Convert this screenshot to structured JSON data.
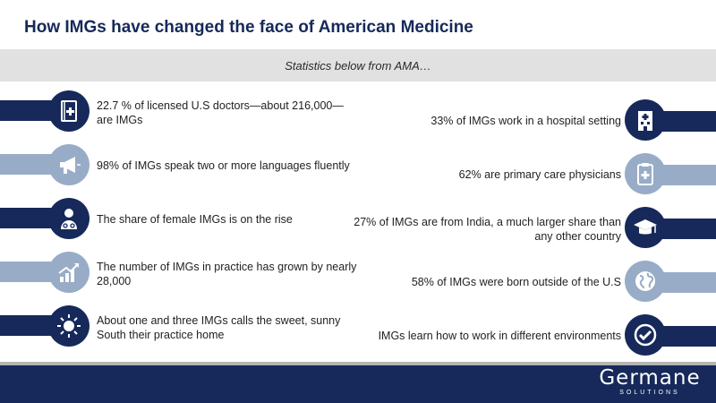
{
  "header": {
    "title": "How IMGs have changed the face of American Medicine",
    "subtitle": "Statistics below from AMA…"
  },
  "colors": {
    "navy": "#16295a",
    "light_blue": "#98acc8",
    "band_gray": "#e1e1e1"
  },
  "left_stats": [
    {
      "text": "22.7 % of licensed U.S doctors—about  216,000—are IMGs",
      "icon": "medical-book-icon",
      "style": "dark"
    },
    {
      "text": "98% of IMGs speak two or more languages fluently",
      "icon": "megaphone-icon",
      "style": "light"
    },
    {
      "text": "The share of female IMGs is on the rise",
      "icon": "female-doctor-icon",
      "style": "dark"
    },
    {
      "text": "The number of IMGs in practice has grown by nearly 28,000",
      "icon": "growth-chart-icon",
      "style": "light"
    },
    {
      "text": "About one and three IMGs calls the sweet, sunny South their practice home",
      "icon": "sun-icon",
      "style": "dark"
    }
  ],
  "right_stats": [
    {
      "text": "33% of IMGs work in a hospital setting",
      "icon": "hospital-icon",
      "style": "dark"
    },
    {
      "text": "62% are primary care physicians",
      "icon": "clipboard-cross-icon",
      "style": "light"
    },
    {
      "text": "27% of IMGs are from India, a much larger share than any other country",
      "icon": "graduation-cap-icon",
      "style": "dark"
    },
    {
      "text": "58% of IMGs were born outside of the U.S",
      "icon": "globe-icon",
      "style": "light"
    },
    {
      "text": "IMGs learn how to work in different environments",
      "icon": "checkmark-icon",
      "style": "dark"
    }
  ],
  "footer": {
    "logo_main": "Germane",
    "logo_sub": "SOLUTIONS"
  }
}
